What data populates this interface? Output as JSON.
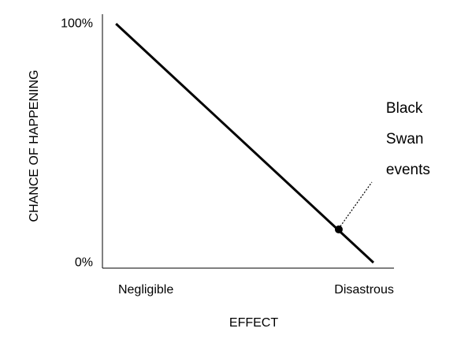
{
  "chart_data": {
    "type": "line",
    "x_label": "EFFECT",
    "y_label": "CHANCE OF HAPPENING",
    "xlim": [
      -19.9,
      113.7
    ],
    "xticks": [
      {
        "value": 0,
        "label": "Negligible"
      },
      {
        "value": 100,
        "label": "Disastrous"
      }
    ],
    "ylim": [
      -2.3,
      104
    ],
    "yticks": [
      {
        "value": 0,
        "label": "0%"
      },
      {
        "value": 100,
        "label": "100%"
      }
    ],
    "x": [
      -13.7,
      104.3
    ],
    "series": [
      {
        "color": "#000000",
        "values": [
          100,
          0
        ]
      }
    ],
    "annotations": [
      {
        "text_lines": [
          "Black",
          "Swan",
          "events"
        ],
        "x": 88.4,
        "y": 13.9
      }
    ]
  }
}
